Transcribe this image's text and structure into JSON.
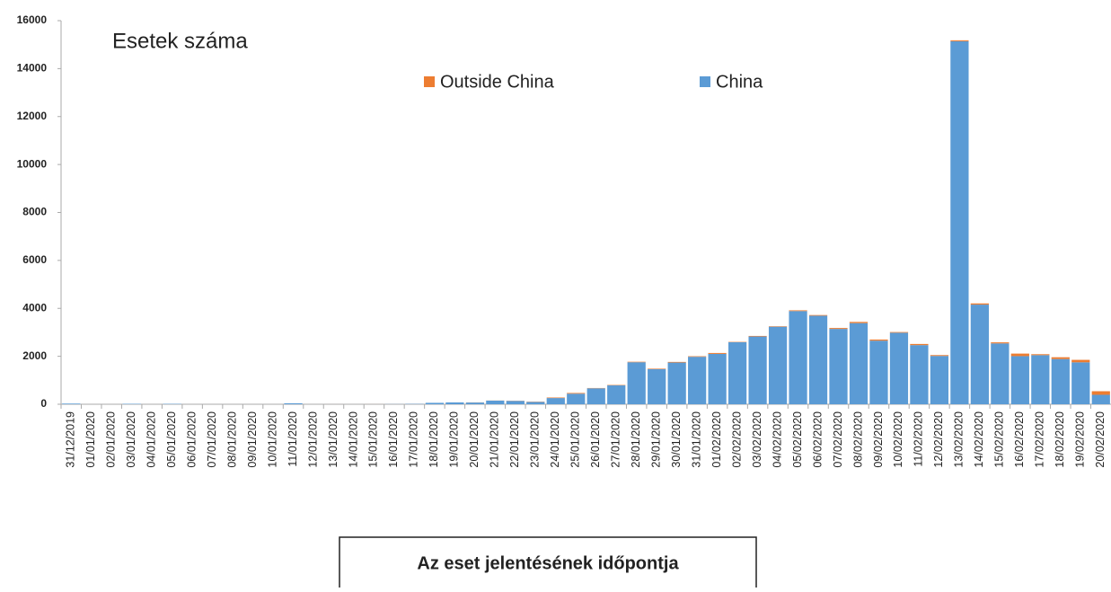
{
  "chart_data": {
    "type": "stacked-bar",
    "title": "Esetek száma",
    "xlabel": "Az eset jelentésének időpontja",
    "categories": [
      "31/12/2019",
      "01/01/2020",
      "02/01/2020",
      "03/01/2020",
      "04/01/2020",
      "05/01/2020",
      "06/01/2020",
      "07/01/2020",
      "08/01/2020",
      "09/01/2020",
      "10/01/2020",
      "11/01/2020",
      "12/01/2020",
      "13/01/2020",
      "14/01/2020",
      "15/01/2020",
      "16/01/2020",
      "17/01/2020",
      "18/01/2020",
      "19/01/2020",
      "20/01/2020",
      "21/01/2020",
      "22/01/2020",
      "23/01/2020",
      "24/01/2020",
      "25/01/2020",
      "26/01/2020",
      "27/01/2020",
      "28/01/2020",
      "29/01/2020",
      "30/01/2020",
      "31/01/2020",
      "01/02/2020",
      "02/02/2020",
      "03/02/2020",
      "04/02/2020",
      "05/02/2020",
      "06/02/2020",
      "07/02/2020",
      "08/02/2020",
      "09/02/2020",
      "10/02/2020",
      "11/02/2020",
      "12/02/2020",
      "13/02/2020",
      "14/02/2020",
      "15/02/2020",
      "16/02/2020",
      "17/02/2020",
      "18/02/2020",
      "19/02/2020",
      "20/02/2020"
    ],
    "series": [
      {
        "name": "China",
        "color": "#5b9bd5",
        "values": [
          27,
          0,
          0,
          17,
          0,
          15,
          0,
          0,
          0,
          0,
          0,
          41,
          0,
          1,
          0,
          0,
          4,
          17,
          59,
          77,
          72,
          151,
          140,
          97,
          259,
          441,
          665,
          787,
          1753,
          1466,
          1740,
          1980,
          2101,
          2590,
          2827,
          3235,
          3887,
          3694,
          3143,
          3385,
          2652,
          2984,
          2467,
          2015,
          15141,
          4156,
          2538,
          2007,
          2048,
          1886,
          1749,
          394
        ]
      },
      {
        "name": "Outside China",
        "color": "#ed7d31",
        "values": [
          0,
          0,
          0,
          0,
          0,
          0,
          0,
          0,
          0,
          0,
          0,
          0,
          0,
          1,
          0,
          1,
          0,
          2,
          0,
          0,
          5,
          4,
          7,
          11,
          22,
          30,
          12,
          17,
          20,
          21,
          26,
          23,
          38,
          14,
          23,
          19,
          31,
          27,
          38,
          50,
          47,
          28,
          48,
          36,
          40,
          50,
          44,
          106,
          40,
          75,
          103,
          149
        ]
      }
    ],
    "ylim": [
      0,
      16000
    ],
    "yticks": [
      0,
      2000,
      4000,
      6000,
      8000,
      10000,
      12000,
      14000,
      16000
    ]
  }
}
